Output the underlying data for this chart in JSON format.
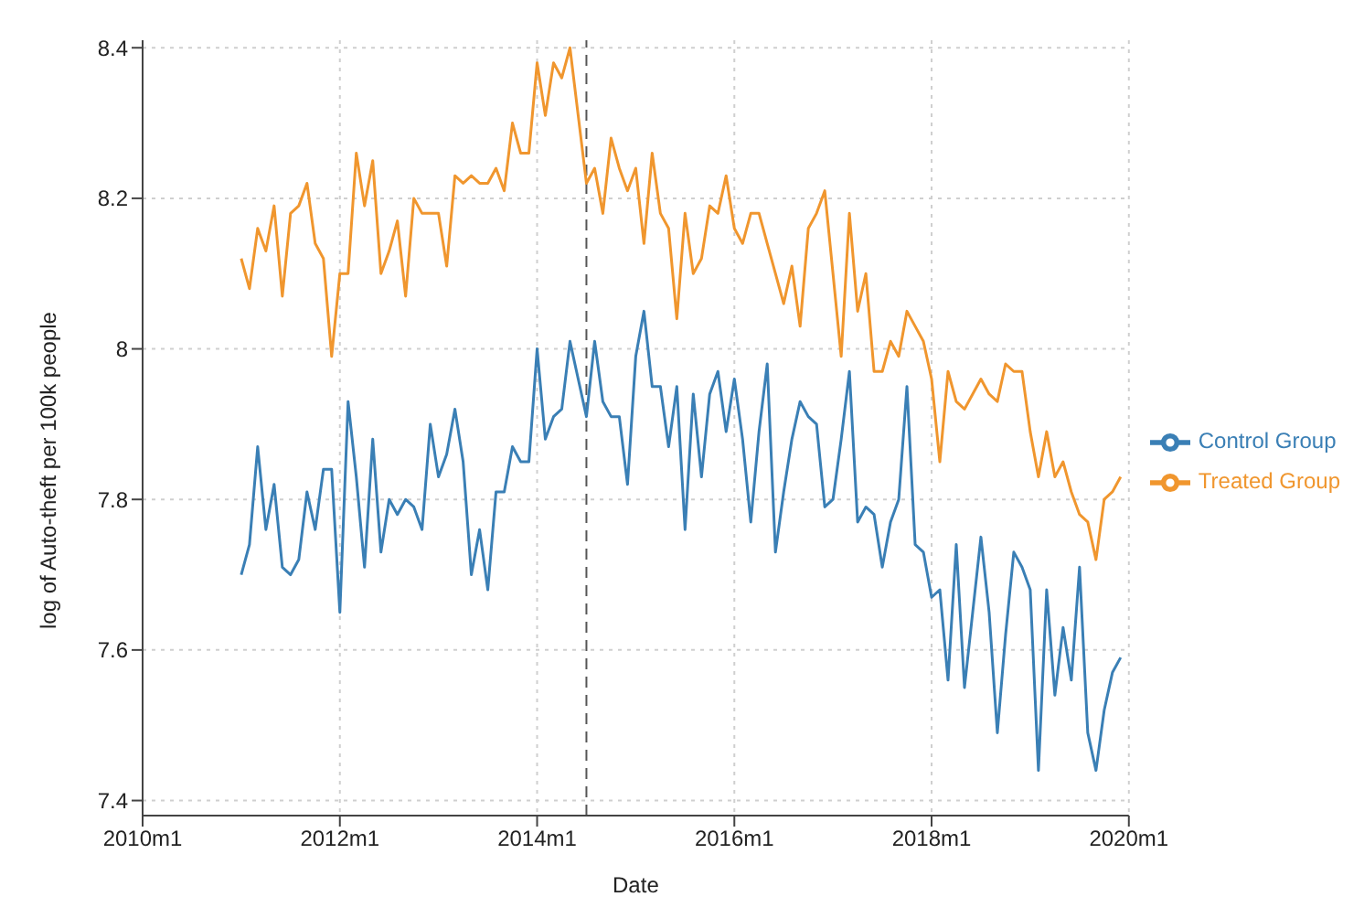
{
  "chart_data": {
    "type": "line",
    "xlabel": "Date",
    "ylabel": "log of Auto-theft per 100k people",
    "x": [
      "2011-01",
      "2011-02",
      "2011-03",
      "2011-04",
      "2011-05",
      "2011-06",
      "2011-07",
      "2011-08",
      "2011-09",
      "2011-10",
      "2011-11",
      "2011-12",
      "2012-01",
      "2012-02",
      "2012-03",
      "2012-04",
      "2012-05",
      "2012-06",
      "2012-07",
      "2012-08",
      "2012-09",
      "2012-10",
      "2012-11",
      "2012-12",
      "2013-01",
      "2013-02",
      "2013-03",
      "2013-04",
      "2013-05",
      "2013-06",
      "2013-07",
      "2013-08",
      "2013-09",
      "2013-10",
      "2013-11",
      "2013-12",
      "2014-01",
      "2014-02",
      "2014-03",
      "2014-04",
      "2014-05",
      "2014-06",
      "2014-07",
      "2014-08",
      "2014-09",
      "2014-10",
      "2014-11",
      "2014-12",
      "2015-01",
      "2015-02",
      "2015-03",
      "2015-04",
      "2015-05",
      "2015-06",
      "2015-07",
      "2015-08",
      "2015-09",
      "2015-10",
      "2015-11",
      "2015-12",
      "2016-01",
      "2016-02",
      "2016-03",
      "2016-04",
      "2016-05",
      "2016-06",
      "2016-07",
      "2016-08",
      "2016-09",
      "2016-10",
      "2016-11",
      "2016-12",
      "2017-01",
      "2017-02",
      "2017-03",
      "2017-04",
      "2017-05",
      "2017-06",
      "2017-07",
      "2017-08",
      "2017-09",
      "2017-10",
      "2017-11",
      "2017-12",
      "2018-01",
      "2018-02",
      "2018-03",
      "2018-04",
      "2018-05",
      "2018-06",
      "2018-07",
      "2018-08",
      "2018-09",
      "2018-10",
      "2018-11",
      "2018-12",
      "2019-01",
      "2019-02",
      "2019-03",
      "2019-04",
      "2019-05",
      "2019-06",
      "2019-07",
      "2019-08",
      "2019-09",
      "2019-10",
      "2019-11",
      "2019-12"
    ],
    "series": [
      {
        "name": "Control Group",
        "color": "#3a7fb5",
        "values": [
          7.7,
          7.74,
          7.87,
          7.76,
          7.82,
          7.71,
          7.7,
          7.72,
          7.81,
          7.76,
          7.84,
          7.84,
          7.65,
          7.93,
          7.83,
          7.71,
          7.88,
          7.73,
          7.8,
          7.78,
          7.8,
          7.79,
          7.76,
          7.9,
          7.83,
          7.86,
          7.92,
          7.85,
          7.7,
          7.76,
          7.68,
          7.81,
          7.81,
          7.87,
          7.85,
          7.85,
          8.0,
          7.88,
          7.91,
          7.92,
          8.01,
          7.96,
          7.91,
          8.01,
          7.93,
          7.91,
          7.91,
          7.82,
          7.99,
          8.05,
          7.95,
          7.95,
          7.87,
          7.95,
          7.76,
          7.94,
          7.83,
          7.94,
          7.97,
          7.89,
          7.96,
          7.88,
          7.77,
          7.89,
          7.98,
          7.73,
          7.81,
          7.88,
          7.93,
          7.91,
          7.9,
          7.79,
          7.8,
          7.88,
          7.97,
          7.77,
          7.79,
          7.78,
          7.71,
          7.77,
          7.8,
          7.95,
          7.74,
          7.73,
          7.67,
          7.68,
          7.56,
          7.74,
          7.55,
          7.65,
          7.75,
          7.65,
          7.49,
          7.62,
          7.73,
          7.71,
          7.68,
          7.44,
          7.68,
          7.54,
          7.63,
          7.56,
          7.71,
          7.49,
          7.44,
          7.52,
          7.57,
          7.59
        ]
      },
      {
        "name": "Treated Group",
        "color": "#f0962e",
        "values": [
          8.12,
          8.08,
          8.16,
          8.13,
          8.19,
          8.07,
          8.18,
          8.19,
          8.22,
          8.14,
          8.12,
          7.99,
          8.1,
          8.1,
          8.26,
          8.19,
          8.25,
          8.1,
          8.13,
          8.17,
          8.07,
          8.2,
          8.18,
          8.18,
          8.18,
          8.11,
          8.23,
          8.22,
          8.23,
          8.22,
          8.22,
          8.24,
          8.21,
          8.3,
          8.26,
          8.26,
          8.38,
          8.31,
          8.38,
          8.36,
          8.4,
          8.31,
          8.22,
          8.24,
          8.18,
          8.28,
          8.24,
          8.21,
          8.24,
          8.14,
          8.26,
          8.18,
          8.16,
          8.04,
          8.18,
          8.1,
          8.12,
          8.19,
          8.18,
          8.23,
          8.16,
          8.14,
          8.18,
          8.18,
          8.14,
          8.1,
          8.06,
          8.11,
          8.03,
          8.16,
          8.18,
          8.21,
          8.1,
          7.99,
          8.18,
          8.05,
          8.1,
          7.97,
          7.97,
          8.01,
          7.99,
          8.05,
          8.03,
          8.01,
          7.96,
          7.85,
          7.97,
          7.93,
          7.92,
          7.94,
          7.96,
          7.94,
          7.93,
          7.98,
          7.97,
          7.97,
          7.89,
          7.83,
          7.89,
          7.83,
          7.85,
          7.81,
          7.78,
          7.77,
          7.72,
          7.8,
          7.81,
          7.83
        ]
      }
    ],
    "xlim": [
      "2010-01",
      "2020-01"
    ],
    "xticks": [
      {
        "value": "2010-01",
        "label": "2010m1"
      },
      {
        "value": "2012-01",
        "label": "2012m1"
      },
      {
        "value": "2014-01",
        "label": "2014m1"
      },
      {
        "value": "2016-01",
        "label": "2016m1"
      },
      {
        "value": "2018-01",
        "label": "2018m1"
      },
      {
        "value": "2020-01",
        "label": "2020m1"
      }
    ],
    "ylim": [
      7.38,
      8.41
    ],
    "yticks": [
      7.4,
      7.6,
      7.8,
      8,
      8.2,
      8.4
    ],
    "ref_lines": [
      {
        "axis": "x",
        "value": "2014-07",
        "color": "#555555",
        "line_style": "dashed"
      }
    ],
    "grid": true,
    "legend": "right",
    "line_style": "solid",
    "marker": "none"
  }
}
